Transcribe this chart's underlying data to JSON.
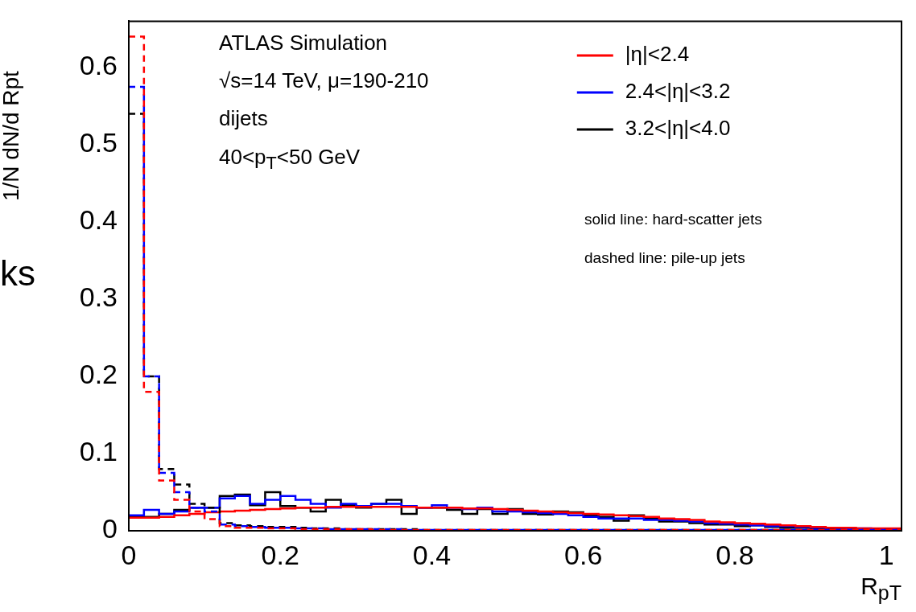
{
  "chart_data": {
    "type": "histogram",
    "ylabel": "1/N dN/d Rpt",
    "xlabel": "R$_{pT}$",
    "annotations": [
      "ATLAS Simulation",
      "√s=14 TeV, μ=190-210",
      "dijets",
      "40<p$_{T}$<50 GeV",
      "solid line: hard-scatter jets",
      "dashed line: pile-up jets",
      "ks"
    ],
    "bins": [
      0,
      0.02,
      0.04,
      0.06,
      0.08,
      0.1,
      0.12,
      0.14,
      0.16,
      0.18,
      0.2,
      0.22,
      0.24,
      0.26,
      0.28,
      0.3,
      0.32,
      0.34,
      0.36,
      0.38,
      0.4,
      0.42,
      0.44,
      0.46,
      0.48,
      0.5,
      0.52,
      0.54,
      0.56,
      0.58,
      0.6,
      0.62,
      0.64,
      0.66,
      0.68,
      0.7,
      0.72,
      0.74,
      0.76,
      0.78,
      0.8,
      0.82,
      0.84,
      0.86,
      0.88,
      0.9,
      0.92,
      0.94,
      0.96,
      0.98,
      1,
      1.02
    ],
    "series": [
      {
        "color": "#ff0000",
        "line_style": "dashed",
        "values": [
          0.64,
          0.18,
          0.065,
          0.04,
          0.025,
          0.015,
          0.006,
          0.004,
          0.004,
          0.003,
          0.003,
          0.002,
          0.002,
          0.002,
          0.002,
          0.002,
          0.001,
          0.001,
          0.001,
          0.001,
          0.001,
          0.001,
          0.001,
          0.001,
          0.001,
          0.001,
          0.001,
          0.001,
          0.001,
          0.001,
          0.001,
          0.001,
          0.001,
          0.001,
          0.001,
          0.001,
          0.001,
          0.001,
          0.001,
          0.001,
          0.001,
          0.001,
          0.001,
          0.001,
          0.001,
          0.001,
          0.001,
          0.001,
          0.001,
          0.001,
          0.001
        ]
      },
      {
        "color": "#0000ff",
        "line_style": "dashed",
        "values": [
          0.575,
          0.2,
          0.075,
          0.05,
          0.03,
          0.025,
          0.008,
          0.006,
          0.005,
          0.004,
          0.004,
          0.003,
          0.003,
          0.002,
          0.002,
          0.002,
          0.002,
          0.002,
          0.001,
          0.001,
          0.001,
          0.001,
          0.001,
          0.001,
          0.001,
          0.001,
          0.001,
          0.001,
          0.001,
          0.001,
          0.001,
          0.001,
          0.001,
          0.001,
          0.001,
          0.001,
          0.001,
          0.001,
          0.001,
          0.001,
          0.001,
          0.001,
          0.001,
          0.001,
          0.001,
          0.001,
          0.001,
          0.001,
          0.001,
          0.001,
          0.001
        ]
      },
      {
        "color": "#000000",
        "line_style": "dashed",
        "values": [
          0.54,
          0.2,
          0.08,
          0.06,
          0.035,
          0.03,
          0.01,
          0.007,
          0.006,
          0.005,
          0.005,
          0.004,
          0.003,
          0.003,
          0.002,
          0.002,
          0.002,
          0.002,
          0.002,
          0.001,
          0.001,
          0.001,
          0.001,
          0.001,
          0.001,
          0.001,
          0.001,
          0.001,
          0.001,
          0.001,
          0.001,
          0.001,
          0.001,
          0.001,
          0.001,
          0.001,
          0.001,
          0.001,
          0.001,
          0.001,
          0.001,
          0.001,
          0.001,
          0.001,
          0.001,
          0.001,
          0.001,
          0.001,
          0.001,
          0.001,
          0.001
        ]
      },
      {
        "name": "|η|<2.4",
        "color": "#ff0000",
        "line_style": "solid",
        "values": [
          0.017,
          0.017,
          0.018,
          0.02,
          0.022,
          0.024,
          0.025,
          0.026,
          0.027,
          0.028,
          0.029,
          0.03,
          0.03,
          0.031,
          0.031,
          0.031,
          0.031,
          0.031,
          0.031,
          0.03,
          0.03,
          0.03,
          0.029,
          0.029,
          0.028,
          0.027,
          0.026,
          0.025,
          0.024,
          0.023,
          0.022,
          0.021,
          0.02,
          0.019,
          0.018,
          0.016,
          0.015,
          0.014,
          0.012,
          0.011,
          0.01,
          0.009,
          0.008,
          0.007,
          0.006,
          0.005,
          0.004,
          0.004,
          0.003,
          0.003,
          0.003
        ]
      },
      {
        "name": "2.4<|η|<3.2",
        "color": "#0000ff",
        "line_style": "solid",
        "values": [
          0.02,
          0.027,
          0.022,
          0.025,
          0.03,
          0.03,
          0.042,
          0.045,
          0.035,
          0.04,
          0.045,
          0.04,
          0.035,
          0.03,
          0.035,
          0.032,
          0.035,
          0.035,
          0.032,
          0.03,
          0.033,
          0.03,
          0.028,
          0.03,
          0.025,
          0.025,
          0.024,
          0.023,
          0.022,
          0.02,
          0.018,
          0.016,
          0.016,
          0.016,
          0.014,
          0.014,
          0.013,
          0.012,
          0.01,
          0.009,
          0.008,
          0.007,
          0.006,
          0.006,
          0.005,
          0.004,
          0.004,
          0.003,
          0.003,
          0.002,
          0.002
        ]
      },
      {
        "name": "3.2<|η|<4.0",
        "color": "#000000",
        "line_style": "solid",
        "values": [
          0.018,
          0.018,
          0.022,
          0.027,
          0.03,
          0.03,
          0.045,
          0.047,
          0.033,
          0.05,
          0.032,
          0.03,
          0.025,
          0.04,
          0.033,
          0.03,
          0.035,
          0.04,
          0.022,
          0.03,
          0.03,
          0.027,
          0.022,
          0.028,
          0.022,
          0.028,
          0.022,
          0.021,
          0.025,
          0.024,
          0.02,
          0.018,
          0.013,
          0.02,
          0.016,
          0.012,
          0.012,
          0.01,
          0.008,
          0.008,
          0.006,
          0.007,
          0.005,
          0.004,
          0.004,
          0.003,
          0.003,
          0.002,
          0.002,
          0.001,
          0.002
        ]
      }
    ],
    "xlim": [
      0,
      1.02
    ],
    "xticks": [
      0,
      0.2,
      0.4,
      0.6,
      0.8,
      1
    ],
    "ylim": [
      0,
      0.66
    ],
    "yticks": [
      0,
      0.1,
      0.2,
      0.3,
      0.4,
      0.5,
      0.6
    ],
    "grid": false,
    "legend": "top right"
  }
}
